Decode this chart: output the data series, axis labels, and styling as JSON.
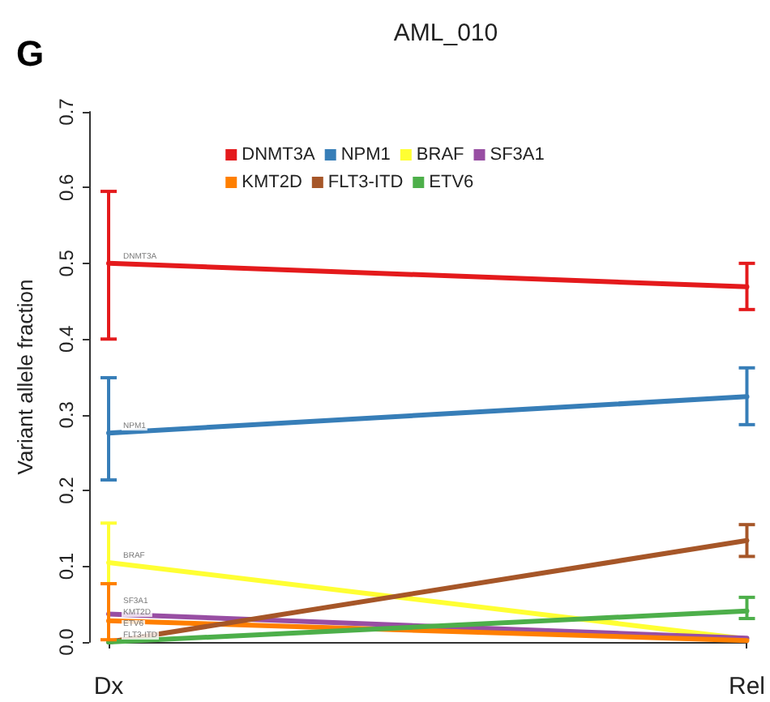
{
  "chart_data": {
    "type": "line",
    "title": "AML_010",
    "ylabel": "Variant allele fraction",
    "categories": [
      "Dx",
      "Rel"
    ],
    "series": [
      {
        "name": "DNMT3A",
        "color": "#e41a1c",
        "values": [
          0.5,
          0.469
        ],
        "errors": [
          [
            0.4,
            0.595
          ],
          [
            0.439,
            0.5
          ]
        ]
      },
      {
        "name": "NPM1",
        "color": "#377eb8",
        "values": [
          0.276,
          0.324
        ],
        "errors": [
          [
            0.214,
            0.349
          ],
          [
            0.287,
            0.362
          ]
        ]
      },
      {
        "name": "BRAF",
        "color": "#ffff33",
        "values": [
          0.105,
          0.004
        ],
        "errors": [
          [
            0.077,
            0.157
          ],
          null
        ]
      },
      {
        "name": "SF3A1",
        "color": "#984ea3",
        "values": [
          0.037,
          0.005
        ],
        "errors": [
          null,
          null
        ]
      },
      {
        "name": "KMT2D",
        "color": "#ff7f00",
        "values": [
          0.028,
          0.002
        ],
        "errors": [
          [
            0.003,
            0.077
          ],
          null
        ]
      },
      {
        "name": "FLT3-ITD",
        "color": "#a65628",
        "values": [
          0.0,
          0.134
        ],
        "errors": [
          null,
          [
            0.113,
            0.155
          ]
        ]
      },
      {
        "name": "ETV6",
        "color": "#4daf4a",
        "values": [
          0.0,
          0.041
        ],
        "errors": [
          null,
          [
            0.031,
            0.059
          ]
        ]
      }
    ],
    "annotations": [
      "G",
      {
        "text": "DNMT3A",
        "x": "Dx",
        "y": 0.5
      },
      {
        "text": "NPM1",
        "x": "Dx",
        "y": 0.276
      },
      {
        "text": "BRAF",
        "x": "Dx",
        "y": 0.105
      },
      {
        "text": "SF3A1",
        "x": "Dx",
        "y": 0.037
      },
      {
        "text": "KMT2D",
        "x": "Dx",
        "y": 0.028
      },
      {
        "text": "FLT3-ITD",
        "x": "Dx",
        "y": 0.0
      },
      {
        "text": "ETV6",
        "x": "Dx",
        "y": 0.0
      }
    ],
    "ylim": [
      0,
      0.7
    ],
    "yticks": [
      {
        "value": 0,
        "label": "0.0"
      },
      0.1,
      0.2,
      0.3,
      0.4,
      0.5,
      0.6,
      0.7
    ],
    "grid": false,
    "legend": "top",
    "marker": "none",
    "line_style": "solid"
  }
}
